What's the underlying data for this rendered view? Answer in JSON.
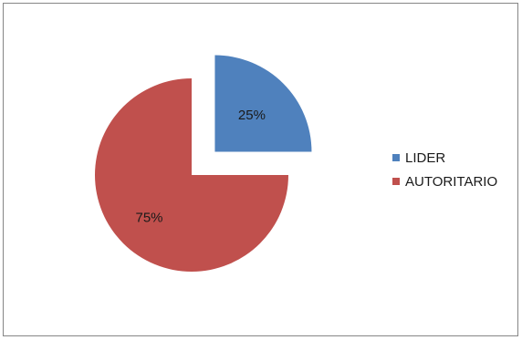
{
  "chart_data": {
    "type": "pie",
    "categories": [
      "LIDER",
      "AUTORITARIO"
    ],
    "values": [
      25,
      75
    ],
    "data_labels": [
      "25%",
      "75%"
    ],
    "colors": [
      "#4F81BD",
      "#C0504D"
    ],
    "exploded": "LIDER",
    "legend_position": "right"
  },
  "legend": {
    "items": [
      {
        "label": "LIDER",
        "color": "#4F81BD"
      },
      {
        "label": "AUTORITARIO",
        "color": "#C0504D"
      }
    ]
  }
}
